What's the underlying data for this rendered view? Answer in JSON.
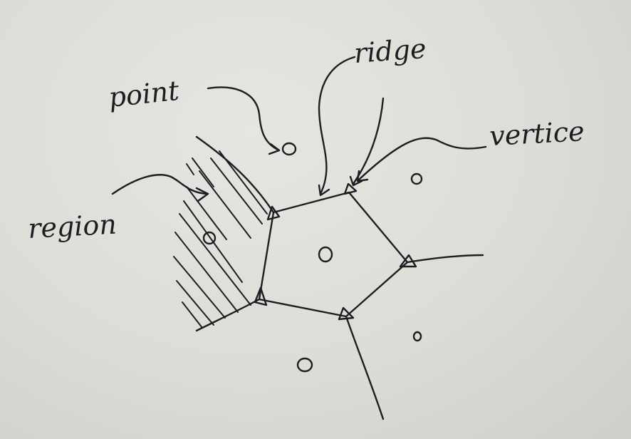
{
  "diagram": {
    "type": "voronoi-sketch",
    "labels": {
      "point": "point",
      "ridge": "ridge",
      "vertice": "vertice",
      "region": "region"
    },
    "ink_color": "#1d1d22",
    "paper_color": "#e2e1dc"
  }
}
